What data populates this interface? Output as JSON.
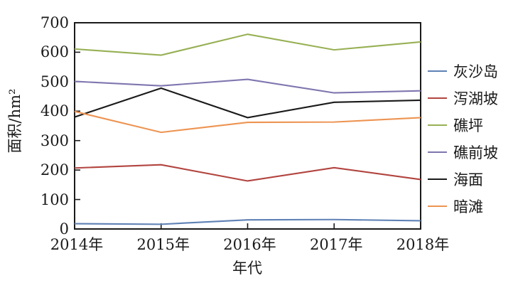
{
  "figure": {
    "background": "#ffffff",
    "axis_color": "#1a1a1a"
  },
  "chart_data": {
    "type": "line",
    "title": "",
    "xlabel": "年代",
    "ylabel": "面积/hm²",
    "categories": [
      "2014年",
      "2015年",
      "2016年",
      "2017年",
      "2018年"
    ],
    "ylim": [
      0,
      700
    ],
    "yticks": [
      0,
      100,
      200,
      300,
      400,
      500,
      600,
      700
    ],
    "grid": false,
    "legend_position": "right-outside",
    "series": [
      {
        "name": "灰沙岛",
        "color": "#5E81B5",
        "values": [
          18,
          16,
          31,
          32,
          28
        ]
      },
      {
        "name": "泻湖坡",
        "color": "#B2443F",
        "values": [
          207,
          218,
          163,
          208,
          168
        ]
      },
      {
        "name": "礁坪",
        "color": "#97B054",
        "values": [
          611,
          590,
          661,
          608,
          635
        ]
      },
      {
        "name": "礁前坡",
        "color": "#7F76AF",
        "values": [
          501,
          486,
          508,
          462,
          469
        ]
      },
      {
        "name": "海面",
        "color": "#1A1A1A",
        "values": [
          380,
          478,
          378,
          430,
          437
        ]
      },
      {
        "name": "暗滩",
        "color": "#ED9452",
        "values": [
          399,
          328,
          362,
          363,
          378
        ]
      }
    ]
  }
}
